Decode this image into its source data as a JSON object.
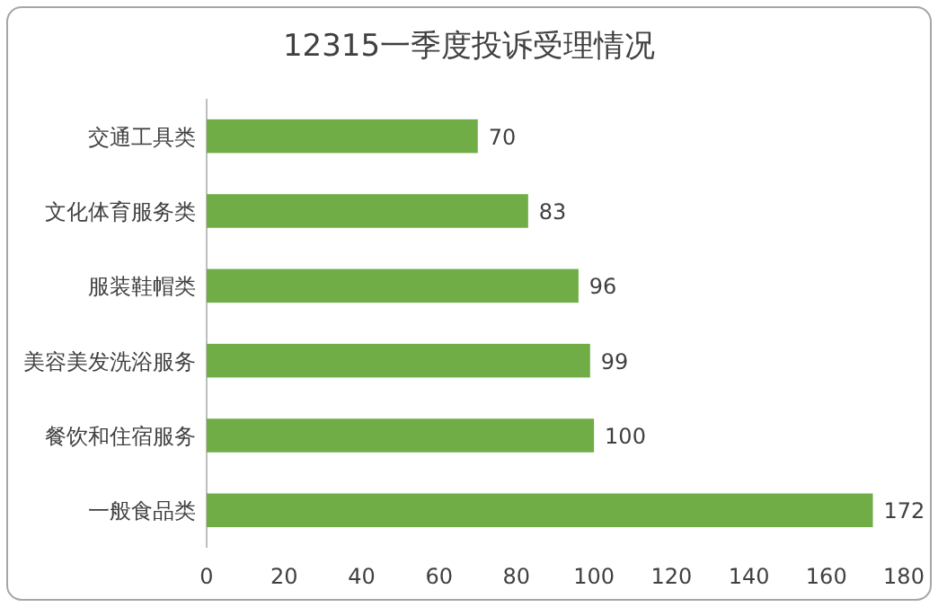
{
  "chart_data": {
    "type": "bar",
    "orientation": "horizontal",
    "title": "12315一季度投诉受理情况",
    "categories": [
      "交通工具类",
      "文化体育服务类",
      "服装鞋帽类",
      "美容美发洗浴服务",
      "餐饮和住宿服务",
      "一般食品类"
    ],
    "values": [
      70,
      83,
      96,
      99,
      100,
      172
    ],
    "color": "#70ad47",
    "xlim": [
      0,
      180
    ],
    "xticks": [
      0,
      20,
      40,
      60,
      80,
      100,
      120,
      140,
      160,
      180
    ],
    "grid": false,
    "data_labels": true
  }
}
